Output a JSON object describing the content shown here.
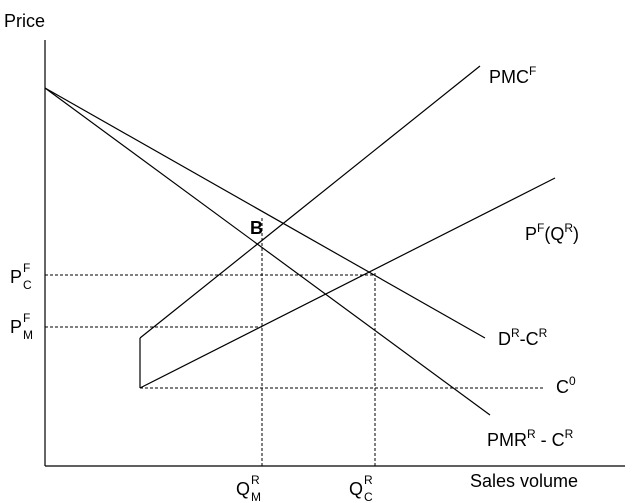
{
  "axes": {
    "y_label": "Price",
    "x_label": "Sales volume"
  },
  "curves": {
    "pmc_f": {
      "base": "PMC",
      "sup": "F"
    },
    "pf_qr": {
      "base": "P",
      "sup": "F",
      "mid": "(Q",
      "sup2": "R",
      "end": ")"
    },
    "dr_cr": {
      "base": "D",
      "sup": "R",
      "mid": "-C",
      "sup2": "R"
    },
    "c0": {
      "base": "C",
      "sup": "0"
    },
    "pmr": {
      "base": "PMR",
      "sup": "R",
      "mid": " - C",
      "sup2": "R"
    }
  },
  "point_b": "B",
  "prices": {
    "pc": {
      "base": "P",
      "sup": "F",
      "sub": "C"
    },
    "pm": {
      "base": "P",
      "sup": "F",
      "sub": "M"
    }
  },
  "quantities": {
    "qm": {
      "base": "Q",
      "sup": "R",
      "sub": "M"
    },
    "qc": {
      "base": "Q",
      "sup": "R",
      "sub": "C"
    }
  }
}
